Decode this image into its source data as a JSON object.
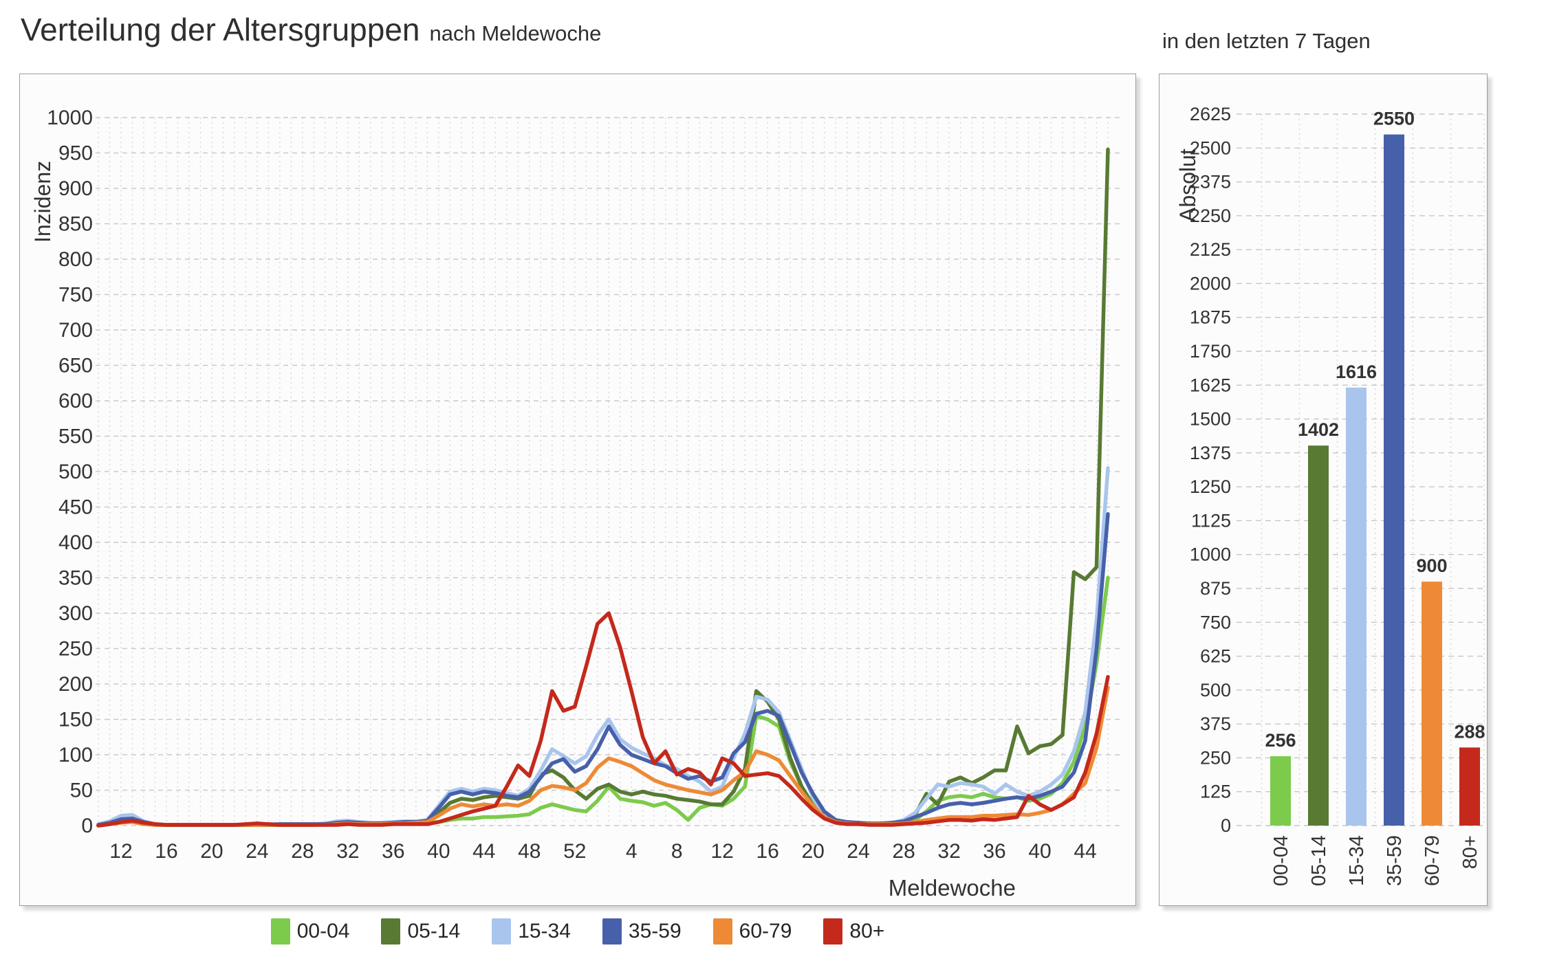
{
  "page": {
    "title": "Verteilung der Altersgruppen",
    "subtitle": "nach Meldewoche",
    "right_title": "in den letzten 7 Tagen"
  },
  "legend": [
    {
      "label": "00-04",
      "color": "#7CCB4C"
    },
    {
      "label": "05-14",
      "color": "#587A33"
    },
    {
      "label": "15-34",
      "color": "#A9C5ED"
    },
    {
      "label": "35-59",
      "color": "#4760AA"
    },
    {
      "label": "60-79",
      "color": "#EE8A35"
    },
    {
      "label": "80+",
      "color": "#C4291C"
    }
  ],
  "chart_data": [
    {
      "type": "line",
      "title": "Verteilung der Altersgruppen nach Meldewoche",
      "xlabel": "Meldewoche",
      "ylabel": "Inzidenz",
      "ylim": [
        0,
        1000
      ],
      "ytick_step": 50,
      "grid": true,
      "legend_position": "bottom",
      "y_ticks": [
        "0",
        "50",
        "100",
        "150",
        "200",
        "250",
        "300",
        "350",
        "400",
        "450",
        "500",
        "550",
        "600",
        "650",
        "700",
        "750",
        "800",
        "850",
        "900",
        "950",
        "1000"
      ],
      "x_tick_labels": [
        "12",
        "16",
        "20",
        "24",
        "28",
        "32",
        "36",
        "40",
        "44",
        "48",
        "52",
        "4",
        "8",
        "12",
        "16",
        "20",
        "24",
        "28",
        "32",
        "36",
        "40",
        "44"
      ],
      "x_tick_indices": [
        2,
        6,
        10,
        14,
        18,
        22,
        26,
        30,
        34,
        38,
        42,
        47,
        51,
        55,
        59,
        63,
        67,
        71,
        75,
        79,
        83,
        87
      ],
      "x_description": "weekly values, calendar week 10/2020 through week 46/2021",
      "series": [
        {
          "name": "00-04",
          "color": "#7CCB4C",
          "values": [
            0,
            2,
            5,
            8,
            3,
            1,
            1,
            1,
            1,
            1,
            1,
            1,
            1,
            1,
            1,
            1,
            1,
            1,
            1,
            1,
            2,
            2,
            3,
            2,
            2,
            2,
            3,
            3,
            3,
            4,
            5,
            8,
            10,
            10,
            12,
            12,
            13,
            14,
            16,
            25,
            30,
            26,
            22,
            20,
            35,
            55,
            38,
            35,
            33,
            28,
            32,
            22,
            8,
            25,
            30,
            28,
            38,
            55,
            155,
            150,
            140,
            90,
            55,
            30,
            12,
            5,
            3,
            3,
            2,
            2,
            2,
            3,
            8,
            20,
            35,
            40,
            42,
            40,
            45,
            40,
            38,
            40,
            35,
            38,
            45,
            60,
            90,
            140,
            230,
            350
          ]
        },
        {
          "name": "05-14",
          "color": "#587A33",
          "values": [
            0,
            2,
            6,
            9,
            4,
            1,
            1,
            1,
            1,
            1,
            1,
            1,
            1,
            1,
            1,
            1,
            1,
            1,
            1,
            1,
            2,
            2,
            3,
            2,
            2,
            3,
            4,
            4,
            5,
            6,
            18,
            32,
            38,
            36,
            40,
            42,
            40,
            38,
            42,
            72,
            78,
            68,
            50,
            38,
            52,
            58,
            48,
            44,
            48,
            44,
            42,
            38,
            36,
            34,
            30,
            30,
            48,
            80,
            190,
            175,
            150,
            95,
            55,
            28,
            12,
            6,
            4,
            3,
            3,
            3,
            4,
            6,
            15,
            45,
            30,
            62,
            68,
            60,
            68,
            78,
            78,
            140,
            102,
            112,
            115,
            128,
            358,
            348,
            365,
            955
          ]
        },
        {
          "name": "15-34",
          "color": "#A9C5ED",
          "values": [
            2,
            6,
            14,
            15,
            6,
            2,
            1,
            1,
            1,
            1,
            1,
            1,
            1,
            1,
            2,
            2,
            2,
            2,
            2,
            2,
            3,
            6,
            7,
            5,
            4,
            4,
            5,
            6,
            6,
            8,
            28,
            48,
            52,
            48,
            52,
            50,
            46,
            42,
            52,
            78,
            108,
            98,
            88,
            98,
            128,
            150,
            122,
            110,
            102,
            95,
            85,
            80,
            70,
            62,
            48,
            55,
            95,
            130,
            182,
            178,
            160,
            120,
            80,
            40,
            15,
            6,
            4,
            4,
            3,
            3,
            4,
            8,
            18,
            38,
            58,
            55,
            60,
            58,
            55,
            45,
            58,
            48,
            42,
            48,
            58,
            72,
            105,
            160,
            290,
            505
          ]
        },
        {
          "name": "35-59",
          "color": "#4760AA",
          "values": [
            1,
            4,
            9,
            10,
            5,
            2,
            1,
            1,
            1,
            1,
            1,
            1,
            1,
            1,
            1,
            1,
            2,
            2,
            2,
            2,
            2,
            4,
            5,
            4,
            3,
            3,
            4,
            5,
            5,
            7,
            25,
            44,
            48,
            44,
            48,
            46,
            42,
            40,
            48,
            68,
            88,
            94,
            76,
            84,
            108,
            140,
            114,
            100,
            94,
            88,
            84,
            74,
            66,
            70,
            62,
            68,
            102,
            118,
            158,
            162,
            155,
            115,
            75,
            45,
            20,
            8,
            5,
            4,
            3,
            3,
            4,
            6,
            12,
            18,
            25,
            30,
            32,
            30,
            32,
            35,
            38,
            40,
            38,
            42,
            48,
            55,
            75,
            120,
            250,
            440
          ]
        },
        {
          "name": "60-79",
          "color": "#EE8A35",
          "values": [
            0,
            2,
            4,
            5,
            2,
            1,
            1,
            1,
            1,
            1,
            1,
            1,
            1,
            1,
            1,
            1,
            1,
            1,
            1,
            1,
            1,
            2,
            3,
            2,
            2,
            2,
            3,
            3,
            4,
            5,
            14,
            24,
            30,
            27,
            30,
            28,
            30,
            28,
            35,
            50,
            56,
            54,
            50,
            60,
            82,
            95,
            90,
            84,
            74,
            64,
            58,
            54,
            50,
            47,
            44,
            50,
            64,
            76,
            105,
            100,
            92,
            70,
            48,
            28,
            12,
            5,
            3,
            2,
            2,
            2,
            2,
            3,
            5,
            8,
            10,
            12,
            12,
            12,
            14,
            14,
            15,
            16,
            15,
            18,
            22,
            30,
            45,
            60,
            110,
            195
          ]
        },
        {
          "name": "80+",
          "color": "#C4291C",
          "values": [
            0,
            2,
            5,
            7,
            4,
            2,
            1,
            1,
            1,
            1,
            1,
            1,
            1,
            2,
            3,
            2,
            1,
            1,
            1,
            1,
            1,
            1,
            2,
            1,
            1,
            1,
            2,
            2,
            2,
            2,
            5,
            10,
            15,
            20,
            24,
            28,
            55,
            85,
            70,
            120,
            190,
            162,
            168,
            225,
            285,
            300,
            252,
            190,
            125,
            88,
            105,
            72,
            80,
            75,
            58,
            95,
            88,
            70,
            72,
            74,
            70,
            55,
            38,
            22,
            10,
            4,
            2,
            2,
            1,
            1,
            1,
            2,
            3,
            4,
            6,
            8,
            8,
            7,
            9,
            8,
            10,
            12,
            42,
            30,
            22,
            30,
            40,
            75,
            130,
            210
          ]
        }
      ]
    },
    {
      "type": "bar",
      "title": "in den letzten 7 Tagen",
      "xlabel": "",
      "ylabel": "Absolut",
      "ylim": [
        0,
        2625
      ],
      "ytick_step": 125,
      "grid": true,
      "y_ticks": [
        "0",
        "125",
        "250",
        "375",
        "500",
        "625",
        "750",
        "875",
        "1000",
        "1125",
        "1250",
        "1375",
        "1500",
        "1625",
        "1750",
        "1875",
        "2000",
        "2125",
        "2250",
        "2375",
        "2500",
        "2625"
      ],
      "categories": [
        "00-04",
        "05-14",
        "15-34",
        "35-59",
        "60-79",
        "80+"
      ],
      "values": [
        256,
        1402,
        1616,
        2550,
        900,
        288
      ],
      "value_labels": [
        "256",
        "1402",
        "1616",
        "2550",
        "900",
        "288"
      ],
      "colors": [
        "#7CCB4C",
        "#587A33",
        "#A9C5ED",
        "#4760AA",
        "#EE8A35",
        "#C4291C"
      ]
    }
  ]
}
